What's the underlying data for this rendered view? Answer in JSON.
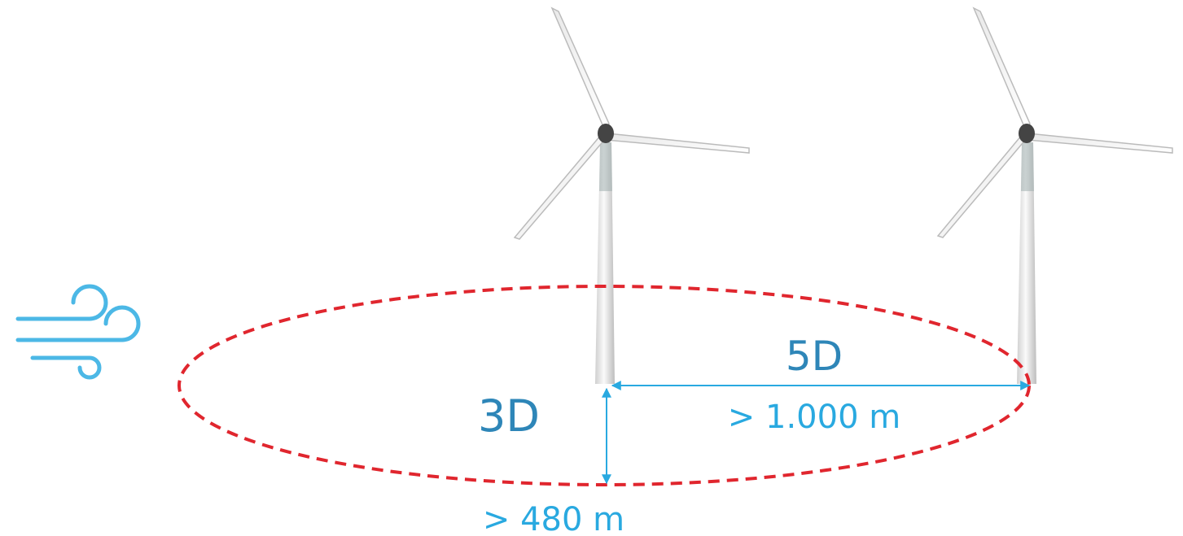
{
  "spacing": {
    "downwind": {
      "label": "5D",
      "distance": "> 1.000 m"
    },
    "crosswind": {
      "label": "3D",
      "distance": "> 480 m"
    }
  }
}
